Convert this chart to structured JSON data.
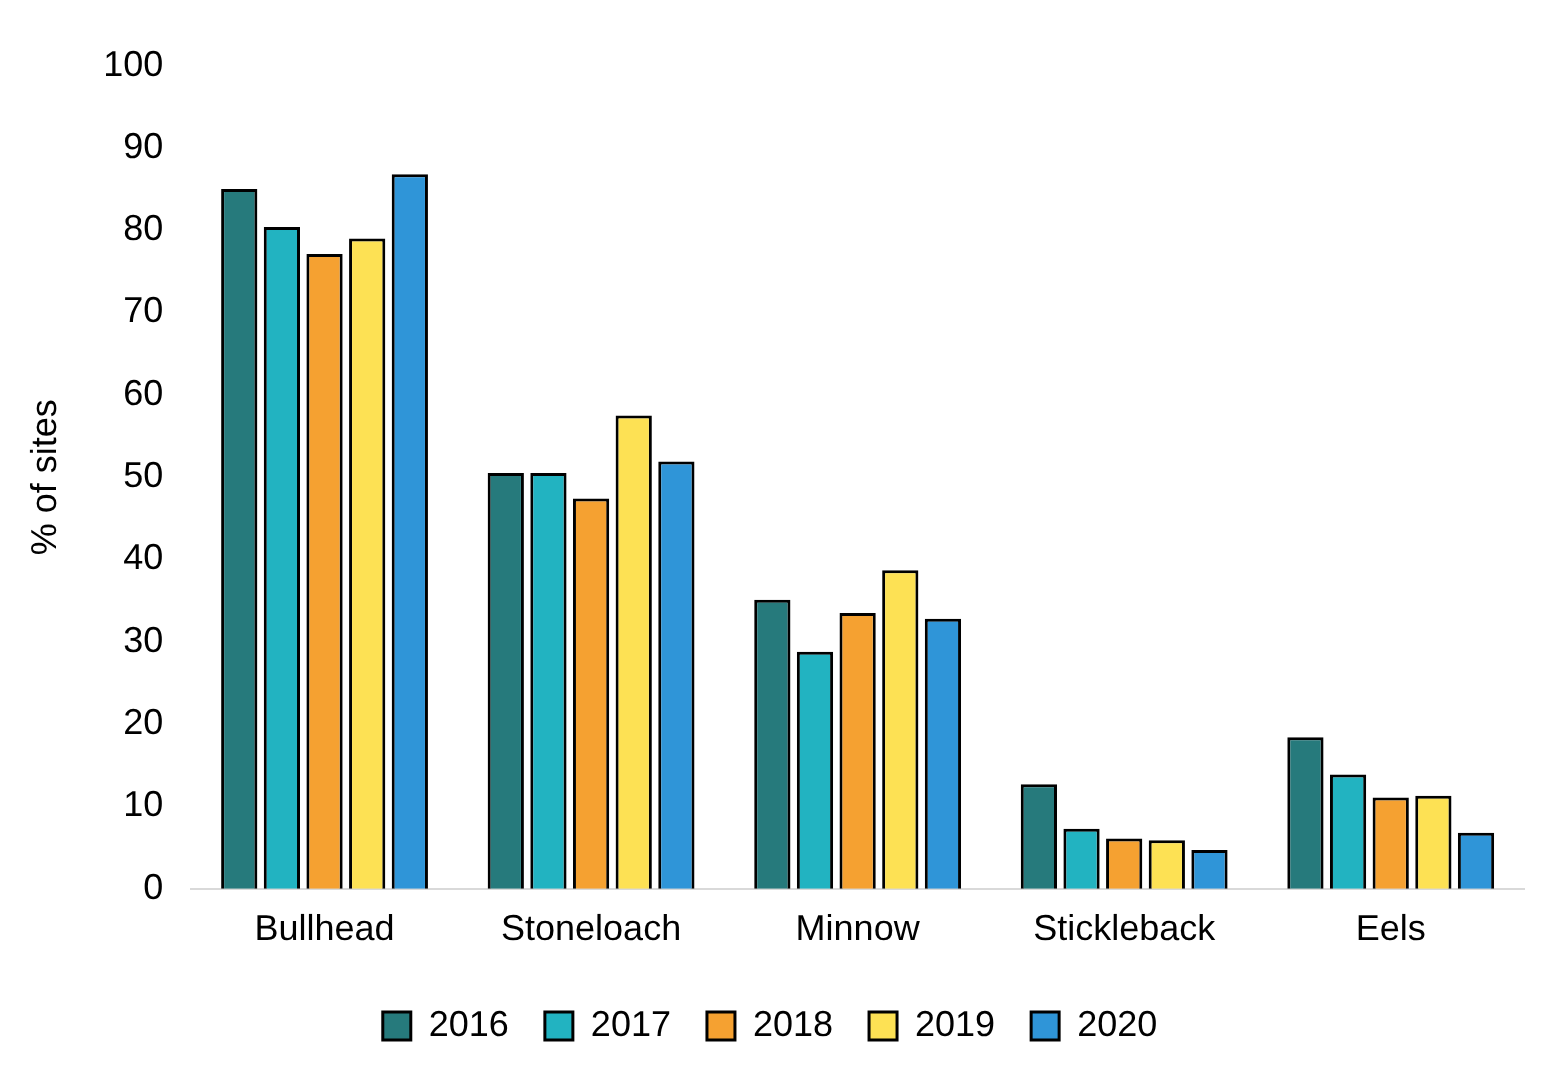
{
  "chart_data": {
    "type": "bar",
    "ylabel": "% of sites",
    "categories": [
      "Bullhead",
      "Stoneloach",
      "Minnow",
      "Stickleback",
      "Eels"
    ],
    "series": [
      {
        "name": "2016",
        "color": "#267a7c",
        "values": [
          85,
          50.5,
          35.1,
          12.7,
          18.4
        ]
      },
      {
        "name": "2017",
        "color": "#22b3c1",
        "values": [
          80.4,
          50.5,
          28.8,
          7.3,
          13.9
        ]
      },
      {
        "name": "2018",
        "color": "#f5a131",
        "values": [
          77.1,
          47.4,
          33.5,
          6.1,
          11.1
        ]
      },
      {
        "name": "2019",
        "color": "#fde154",
        "values": [
          79,
          57.5,
          38.7,
          5.9,
          11.3
        ]
      },
      {
        "name": "2020",
        "color": "#2f95d8",
        "values": [
          86.8,
          51.9,
          32.8,
          4.7,
          6.8
        ]
      }
    ],
    "ylim": [
      0,
      100
    ],
    "yticks": [
      0,
      10,
      20,
      30,
      40,
      50,
      60,
      70,
      80,
      90,
      100
    ],
    "grid": false,
    "legend": "bottom"
  }
}
